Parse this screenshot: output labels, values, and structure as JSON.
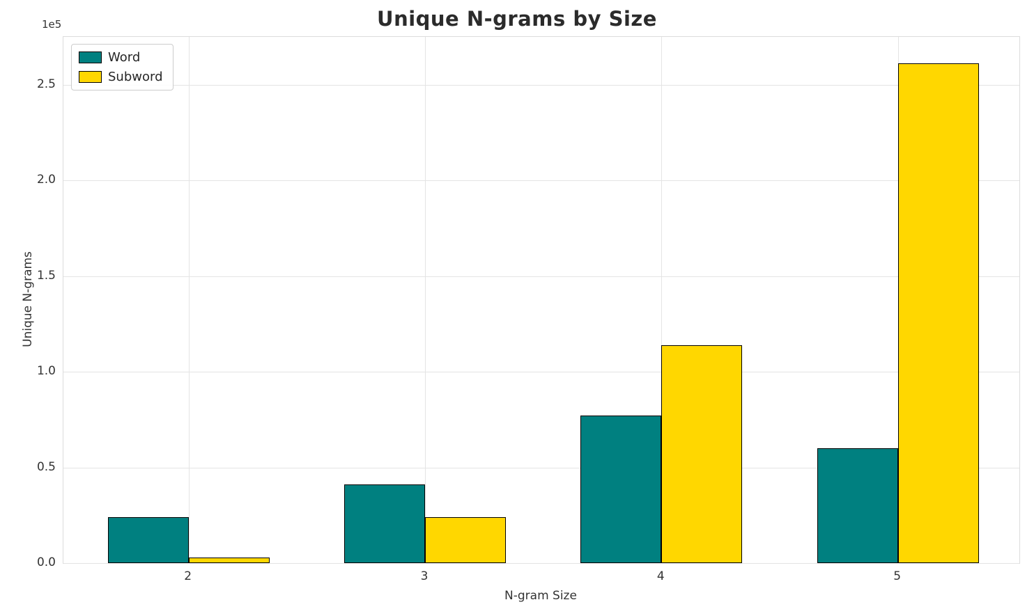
{
  "chart_data": {
    "type": "bar",
    "title": "Unique N-grams by Size",
    "xlabel": "N-gram Size",
    "ylabel": "Unique N-grams",
    "offset_text": "1e5",
    "categories": [
      "2",
      "3",
      "4",
      "5"
    ],
    "series": [
      {
        "name": "Word",
        "color": "#008080",
        "values": [
          24000,
          41000,
          77000,
          60000
        ]
      },
      {
        "name": "Subword",
        "color": "#FFD700",
        "values": [
          3000,
          24000,
          114000,
          261000
        ]
      }
    ],
    "ylim": [
      0,
      275000
    ],
    "yticks": [
      0,
      50000,
      100000,
      150000,
      200000,
      250000
    ],
    "ytick_labels": [
      "0.0",
      "0.5",
      "1.0",
      "1.5",
      "2.0",
      "2.5"
    ],
    "grid": true,
    "legend_position": "upper left",
    "bar_edge_color": "#000000"
  }
}
